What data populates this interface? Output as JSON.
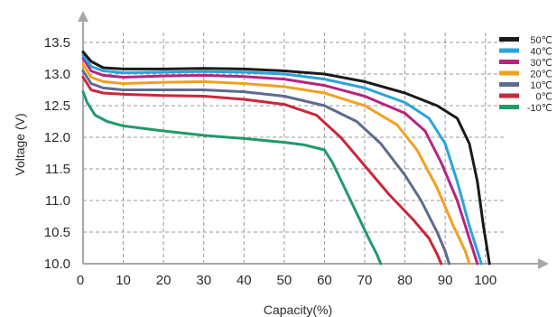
{
  "chart_data": {
    "type": "line",
    "title": "",
    "xlabel": "Capacity(%)",
    "ylabel": "Voltage (V)",
    "xlim": [
      0,
      105
    ],
    "ylim": [
      10.0,
      13.6
    ],
    "x_ticks": [
      0,
      10,
      20,
      30,
      40,
      50,
      60,
      70,
      80,
      90,
      100
    ],
    "y_ticks": [
      10.0,
      10.5,
      11.0,
      11.5,
      12.0,
      12.5,
      13.0,
      13.5
    ],
    "x_tick_labels": [
      "0",
      "10",
      "20",
      "30",
      "40",
      "50",
      "60",
      "70",
      "80",
      "90",
      "100"
    ],
    "y_tick_labels": [
      "10.0",
      "10.5",
      "11.0",
      "11.5",
      "12.0",
      "12.5",
      "13.0",
      "13.5"
    ],
    "grid": true,
    "legend_position": "top-right",
    "series": [
      {
        "name": "50℃",
        "color": "#1a1a1a",
        "points": [
          [
            0,
            13.35
          ],
          [
            2,
            13.2
          ],
          [
            5,
            13.1
          ],
          [
            10,
            13.08
          ],
          [
            20,
            13.08
          ],
          [
            30,
            13.09
          ],
          [
            40,
            13.08
          ],
          [
            50,
            13.05
          ],
          [
            60,
            13.0
          ],
          [
            70,
            12.88
          ],
          [
            80,
            12.7
          ],
          [
            88,
            12.5
          ],
          [
            93,
            12.3
          ],
          [
            96,
            11.9
          ],
          [
            98,
            11.3
          ],
          [
            99.5,
            10.6
          ],
          [
            101,
            10.0
          ]
        ]
      },
      {
        "name": "40℃",
        "color": "#2aa3dd",
        "points": [
          [
            0,
            13.3
          ],
          [
            2,
            13.12
          ],
          [
            5,
            13.05
          ],
          [
            10,
            13.02
          ],
          [
            20,
            13.03
          ],
          [
            30,
            13.04
          ],
          [
            40,
            13.03
          ],
          [
            50,
            13.0
          ],
          [
            60,
            12.92
          ],
          [
            70,
            12.78
          ],
          [
            80,
            12.55
          ],
          [
            86,
            12.3
          ],
          [
            90,
            11.9
          ],
          [
            93,
            11.3
          ],
          [
            96,
            10.6
          ],
          [
            98,
            10.2
          ],
          [
            99,
            10.0
          ]
        ]
      },
      {
        "name": "30℃",
        "color": "#b6247f",
        "points": [
          [
            0,
            13.25
          ],
          [
            2,
            13.05
          ],
          [
            5,
            12.98
          ],
          [
            10,
            12.95
          ],
          [
            20,
            12.97
          ],
          [
            30,
            12.98
          ],
          [
            40,
            12.96
          ],
          [
            50,
            12.92
          ],
          [
            60,
            12.82
          ],
          [
            70,
            12.65
          ],
          [
            80,
            12.38
          ],
          [
            85,
            12.1
          ],
          [
            89,
            11.6
          ],
          [
            93,
            11.0
          ],
          [
            96,
            10.4
          ],
          [
            98,
            10.0
          ]
        ]
      },
      {
        "name": "20℃",
        "color": "#f2a020",
        "points": [
          [
            0,
            13.15
          ],
          [
            2,
            12.95
          ],
          [
            5,
            12.88
          ],
          [
            10,
            12.85
          ],
          [
            20,
            12.87
          ],
          [
            30,
            12.88
          ],
          [
            40,
            12.85
          ],
          [
            50,
            12.8
          ],
          [
            60,
            12.7
          ],
          [
            70,
            12.5
          ],
          [
            78,
            12.2
          ],
          [
            83,
            11.8
          ],
          [
            88,
            11.2
          ],
          [
            92,
            10.6
          ],
          [
            95,
            10.2
          ],
          [
            96,
            10.0
          ]
        ]
      },
      {
        "name": "10℃",
        "color": "#5e6a8e",
        "points": [
          [
            0,
            13.05
          ],
          [
            2,
            12.85
          ],
          [
            5,
            12.78
          ],
          [
            10,
            12.75
          ],
          [
            20,
            12.75
          ],
          [
            30,
            12.75
          ],
          [
            40,
            12.72
          ],
          [
            50,
            12.65
          ],
          [
            60,
            12.5
          ],
          [
            68,
            12.25
          ],
          [
            74,
            11.9
          ],
          [
            80,
            11.4
          ],
          [
            84,
            11.0
          ],
          [
            88,
            10.5
          ],
          [
            90,
            10.2
          ],
          [
            91,
            10.0
          ]
        ]
      },
      {
        "name": "0℃",
        "color": "#c8283a",
        "points": [
          [
            0,
            12.95
          ],
          [
            2,
            12.75
          ],
          [
            5,
            12.7
          ],
          [
            10,
            12.68
          ],
          [
            20,
            12.66
          ],
          [
            30,
            12.65
          ],
          [
            40,
            12.6
          ],
          [
            50,
            12.52
          ],
          [
            58,
            12.35
          ],
          [
            64,
            12.0
          ],
          [
            70,
            11.55
          ],
          [
            76,
            11.1
          ],
          [
            82,
            10.7
          ],
          [
            86,
            10.4
          ],
          [
            88,
            10.15
          ],
          [
            89,
            10.0
          ]
        ]
      },
      {
        "name": "-10℃",
        "color": "#1f9a6a",
        "points": [
          [
            0,
            12.72
          ],
          [
            1,
            12.55
          ],
          [
            3,
            12.35
          ],
          [
            6,
            12.25
          ],
          [
            10,
            12.18
          ],
          [
            20,
            12.1
          ],
          [
            30,
            12.03
          ],
          [
            40,
            11.98
          ],
          [
            50,
            11.92
          ],
          [
            55,
            11.88
          ],
          [
            60,
            11.8
          ],
          [
            62,
            11.6
          ],
          [
            65,
            11.2
          ],
          [
            68,
            10.8
          ],
          [
            71,
            10.4
          ],
          [
            73,
            10.15
          ],
          [
            74,
            10.0
          ]
        ]
      }
    ]
  }
}
